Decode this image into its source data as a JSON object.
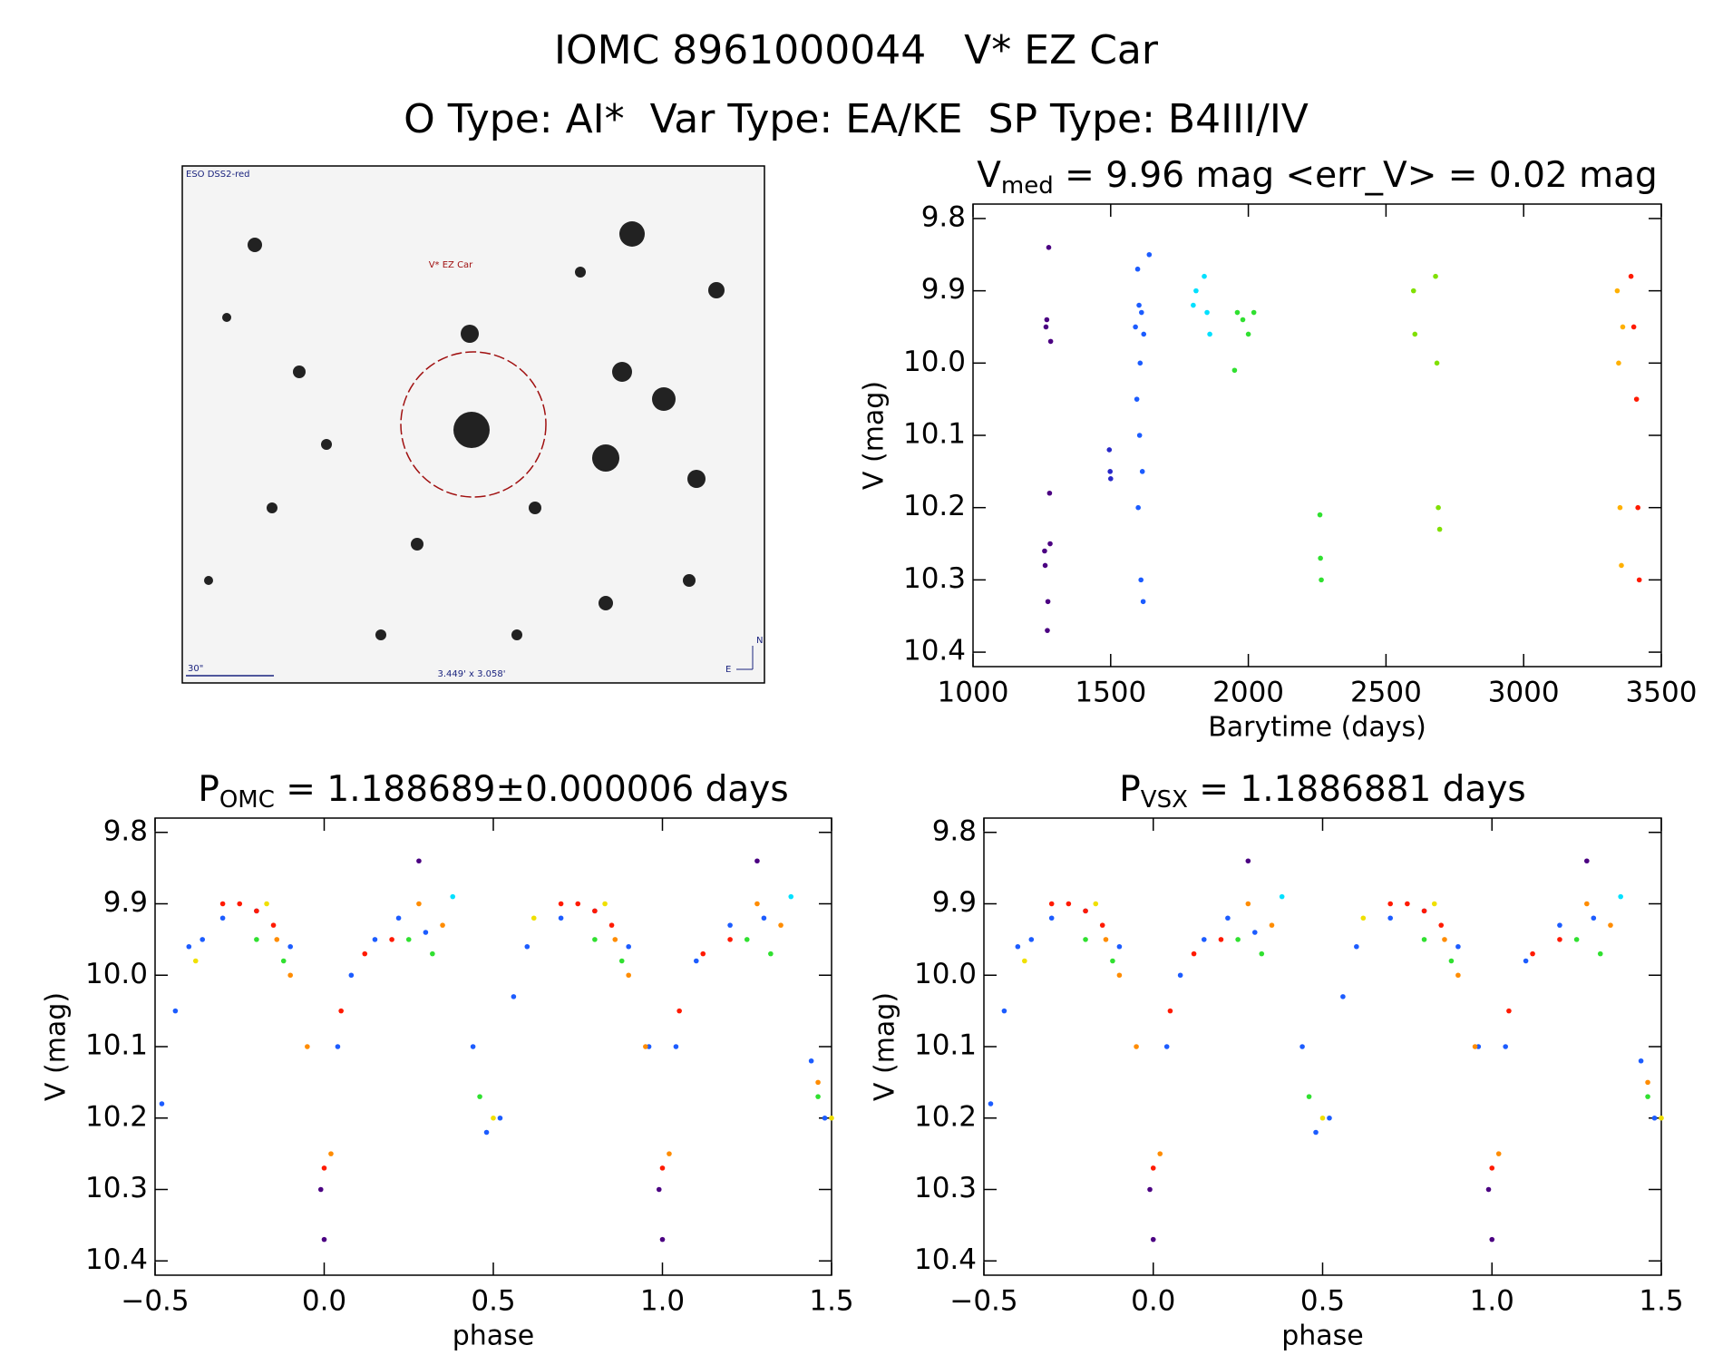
{
  "header": {
    "title": "IOMC 8961000044   V* EZ Car",
    "subtitle": "O Type: AI*  Var Type: EA/KE  SP Type: B4III/IV"
  },
  "image": {
    "survey": "ESO DSS2-red",
    "target": "V* EZ Car",
    "scale": "30\"",
    "field": "3.449' x 3.058'",
    "north": "N",
    "east": "E"
  },
  "chart_data": [
    {
      "type": "scatter",
      "title": [
        "V",
        "med",
        " = 9.96 mag <err_V> = 0.02 mag"
      ],
      "xlabel": "Barytime (days)",
      "ylabel": "V (mag)",
      "xlim": [
        1000,
        3500
      ],
      "ylim": [
        10.42,
        9.78
      ],
      "xticks": [
        1000,
        1500,
        2000,
        2500,
        3000,
        3500
      ],
      "yticks": [
        9.8,
        9.9,
        {
          "value": 10,
          "label": "10.0"
        },
        10.1,
        10.2,
        10.3,
        10.4
      ],
      "series": [
        {
          "color": "#4b0082",
          "x": [
            1260,
            1262,
            1265,
            1268,
            1270,
            1272,
            1275,
            1278,
            1280,
            1282
          ],
          "values": [
            10.26,
            10.28,
            9.95,
            9.94,
            10.37,
            10.33,
            9.84,
            10.18,
            10.25,
            9.97
          ]
        },
        {
          "color": "#2828c8",
          "x": [
            1495,
            1498,
            1500
          ],
          "values": [
            10.12,
            10.15,
            10.16
          ]
        },
        {
          "color": "#1c5cff",
          "x": [
            1590,
            1595,
            1598,
            1600,
            1603,
            1605,
            1607,
            1610,
            1612,
            1615,
            1618,
            1620,
            1640
          ],
          "values": [
            9.95,
            10.05,
            9.87,
            10.2,
            9.92,
            10.1,
            10.0,
            10.3,
            9.93,
            10.15,
            10.33,
            9.96,
            9.85
          ]
        },
        {
          "color": "#00e0ff",
          "x": [
            1800,
            1810,
            1840,
            1850,
            1860
          ],
          "values": [
            9.92,
            9.9,
            9.88,
            9.93,
            9.96
          ]
        },
        {
          "color": "#30e030",
          "x": [
            1950,
            1960,
            1980,
            2000,
            2020,
            2260,
            2262,
            2265
          ],
          "values": [
            10.01,
            9.93,
            9.94,
            9.96,
            9.93,
            10.21,
            10.27,
            10.3
          ]
        },
        {
          "color": "#80e000",
          "x": [
            2600,
            2605,
            2680,
            2685,
            2690,
            2695
          ],
          "values": [
            9.9,
            9.96,
            9.88,
            10.0,
            10.2,
            10.23
          ]
        },
        {
          "color": "#ffb000",
          "x": [
            3340,
            3345,
            3350,
            3355,
            3360
          ],
          "values": [
            9.9,
            10.0,
            10.2,
            10.28,
            9.95
          ]
        },
        {
          "color": "#ff1a00",
          "x": [
            3390,
            3400,
            3410,
            3415,
            3420
          ],
          "values": [
            9.88,
            9.95,
            10.05,
            10.2,
            10.3
          ]
        }
      ]
    },
    {
      "type": "scatter",
      "title": [
        "P",
        "OMC",
        " = 1.188689±0.000006 days"
      ],
      "xlabel": "phase",
      "ylabel": "V (mag)",
      "xlim": [
        -0.5,
        1.5
      ],
      "ylim": [
        10.42,
        9.78
      ],
      "xticks": [
        {
          "value": -0.5,
          "label": "−0.5"
        },
        {
          "value": 0,
          "label": "0.0"
        },
        0.5,
        {
          "value": 1,
          "label": "1.0"
        },
        1.5
      ],
      "yticks": [
        9.8,
        9.9,
        {
          "value": 10,
          "label": "10.0"
        },
        10.1,
        10.2,
        10.3,
        10.4
      ],
      "series": [
        {
          "color": "#1c5cff",
          "x": [
            -0.48,
            -0.44,
            -0.4,
            -0.36,
            -0.3,
            -0.2,
            -0.1,
            0.04,
            0.08,
            0.15,
            0.22,
            0.3,
            0.44,
            0.48,
            0.52,
            0.56,
            0.6,
            0.7,
            0.8,
            0.9,
            0.96,
            1.04,
            1.1,
            1.2,
            1.3,
            1.44,
            1.48
          ],
          "values": [
            10.18,
            10.05,
            9.96,
            9.95,
            9.92,
            9.91,
            9.96,
            10.1,
            10.0,
            9.95,
            9.92,
            9.94,
            10.1,
            10.22,
            10.2,
            10.03,
            9.96,
            9.92,
            9.91,
            9.96,
            10.1,
            10.1,
            9.98,
            9.93,
            9.92,
            10.12,
            10.2
          ]
        },
        {
          "color": "#ff1a00",
          "x": [
            -0.3,
            -0.25,
            -0.2,
            -0.15,
            0.0,
            0.05,
            0.12,
            0.2,
            0.7,
            0.75,
            0.8,
            0.85,
            1.0,
            1.05,
            1.12,
            1.2
          ],
          "values": [
            9.9,
            9.9,
            9.91,
            9.93,
            10.27,
            10.05,
            9.97,
            9.95,
            9.9,
            9.9,
            9.91,
            9.93,
            10.27,
            10.05,
            9.97,
            9.95
          ]
        },
        {
          "color": "#ff8c00",
          "x": [
            -0.14,
            -0.1,
            -0.05,
            0.02,
            0.28,
            0.35,
            0.86,
            0.9,
            0.95,
            1.02,
            1.28,
            1.35,
            1.46
          ],
          "values": [
            9.95,
            10.0,
            10.1,
            10.25,
            9.9,
            9.93,
            9.95,
            10.0,
            10.1,
            10.25,
            9.9,
            9.93,
            10.15
          ]
        },
        {
          "color": "#30e030",
          "x": [
            -0.2,
            -0.12,
            0.25,
            0.32,
            0.46,
            0.8,
            0.88,
            1.25,
            1.32,
            1.46
          ],
          "values": [
            9.95,
            9.98,
            9.95,
            9.97,
            10.17,
            9.95,
            9.98,
            9.95,
            9.97,
            10.17
          ]
        },
        {
          "color": "#f0e000",
          "x": [
            -0.38,
            -0.17,
            0.5,
            0.62,
            0.83,
            1.5
          ],
          "values": [
            9.98,
            9.9,
            10.2,
            9.92,
            9.9,
            10.2
          ]
        },
        {
          "color": "#4b0082",
          "x": [
            -0.01,
            0.0,
            0.28,
            0.99,
            1.0,
            1.28
          ],
          "values": [
            10.3,
            10.37,
            9.84,
            10.3,
            10.37,
            9.84
          ]
        },
        {
          "color": "#00e0ff",
          "x": [
            0.38,
            1.38
          ],
          "values": [
            9.89,
            9.89
          ]
        }
      ]
    },
    {
      "type": "scatter",
      "title": [
        "P",
        "VSX",
        " = 1.1886881 days"
      ],
      "xlabel": "phase",
      "ylabel": "V (mag)",
      "xlim": [
        -0.5,
        1.5
      ],
      "ylim": [
        10.42,
        9.78
      ],
      "xticks": [
        {
          "value": -0.5,
          "label": "−0.5"
        },
        {
          "value": 0,
          "label": "0.0"
        },
        0.5,
        {
          "value": 1,
          "label": "1.0"
        },
        1.5
      ],
      "yticks": [
        9.8,
        9.9,
        {
          "value": 10,
          "label": "10.0"
        },
        10.1,
        10.2,
        10.3,
        10.4
      ],
      "series": [
        {
          "color": "#1c5cff",
          "x": [
            -0.48,
            -0.44,
            -0.4,
            -0.36,
            -0.3,
            -0.2,
            -0.1,
            0.04,
            0.08,
            0.15,
            0.22,
            0.3,
            0.44,
            0.48,
            0.52,
            0.56,
            0.6,
            0.7,
            0.8,
            0.9,
            0.96,
            1.04,
            1.1,
            1.2,
            1.3,
            1.44,
            1.48
          ],
          "values": [
            10.18,
            10.05,
            9.96,
            9.95,
            9.92,
            9.91,
            9.96,
            10.1,
            10.0,
            9.95,
            9.92,
            9.94,
            10.1,
            10.22,
            10.2,
            10.03,
            9.96,
            9.92,
            9.91,
            9.96,
            10.1,
            10.1,
            9.98,
            9.93,
            9.92,
            10.12,
            10.2
          ]
        },
        {
          "color": "#ff1a00",
          "x": [
            -0.3,
            -0.25,
            -0.2,
            -0.15,
            0.0,
            0.05,
            0.12,
            0.2,
            0.7,
            0.75,
            0.8,
            0.85,
            1.0,
            1.05,
            1.12,
            1.2
          ],
          "values": [
            9.9,
            9.9,
            9.91,
            9.93,
            10.27,
            10.05,
            9.97,
            9.95,
            9.9,
            9.9,
            9.91,
            9.93,
            10.27,
            10.05,
            9.97,
            9.95
          ]
        },
        {
          "color": "#ff8c00",
          "x": [
            -0.14,
            -0.1,
            -0.05,
            0.02,
            0.28,
            0.35,
            0.86,
            0.9,
            0.95,
            1.02,
            1.28,
            1.35,
            1.46
          ],
          "values": [
            9.95,
            10.0,
            10.1,
            10.25,
            9.9,
            9.93,
            9.95,
            10.0,
            10.1,
            10.25,
            9.9,
            9.93,
            10.15
          ]
        },
        {
          "color": "#30e030",
          "x": [
            -0.2,
            -0.12,
            0.25,
            0.32,
            0.46,
            0.8,
            0.88,
            1.25,
            1.32,
            1.46
          ],
          "values": [
            9.95,
            9.98,
            9.95,
            9.97,
            10.17,
            9.95,
            9.98,
            9.95,
            9.97,
            10.17
          ]
        },
        {
          "color": "#f0e000",
          "x": [
            -0.38,
            -0.17,
            0.5,
            0.62,
            0.83,
            1.5
          ],
          "values": [
            9.98,
            9.9,
            10.2,
            9.92,
            9.9,
            10.2
          ]
        },
        {
          "color": "#4b0082",
          "x": [
            -0.01,
            0.0,
            0.28,
            0.99,
            1.0,
            1.28
          ],
          "values": [
            10.3,
            10.37,
            9.84,
            10.3,
            10.37,
            9.84
          ]
        },
        {
          "color": "#00e0ff",
          "x": [
            0.38,
            1.38
          ],
          "values": [
            9.89,
            9.89
          ]
        }
      ]
    }
  ]
}
